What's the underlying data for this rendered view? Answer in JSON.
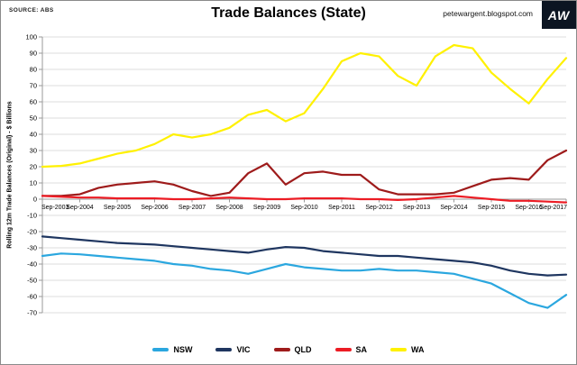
{
  "header": {
    "source_label": "SOURCE: ABS",
    "title": "Trade Balances (State)",
    "website": "petewargent.blogspot.com",
    "logo_text": "AW"
  },
  "chart_data": {
    "type": "line",
    "title": "Trade Balances (State)",
    "ylabel": "Rolling 12m Trade Balances (Original) - $ Billions",
    "ylim": [
      -70,
      100
    ],
    "y_ticks": [
      100,
      90,
      80,
      70,
      60,
      50,
      40,
      30,
      20,
      10,
      0,
      -10,
      -20,
      -30,
      -40,
      -50,
      -60,
      -70
    ],
    "x_labels": [
      "Sep-2003",
      "Sep-2004",
      "Sep-2005",
      "Sep-2006",
      "Sep-2007",
      "Sep-2008",
      "Sep-2009",
      "Sep-2010",
      "Sep-2011",
      "Sep-2012",
      "Sep-2013",
      "Sep-2014",
      "Sep-2015",
      "Sep-2016",
      "Sep-2017"
    ],
    "sampling": "half-yearly points (Mar & Sep) from Sep-2003 to Sep-2017",
    "grid": true,
    "legend_position": "bottom",
    "series": [
      {
        "name": "NSW",
        "color": "#2BA7DF",
        "values": [
          -35,
          -33.5,
          -34,
          -35,
          -36,
          -37,
          -38,
          -40,
          -41,
          -43,
          -44,
          -46,
          -43,
          -40,
          -42,
          -43,
          -44,
          -44,
          -43,
          -44,
          -44,
          -45,
          -46,
          -49,
          -52,
          -58,
          -64,
          -67,
          -59
        ]
      },
      {
        "name": "VIC",
        "color": "#1F3660",
        "values": [
          -23,
          -24,
          -25,
          -26,
          -27,
          -27.5,
          -28,
          -29,
          -30,
          -31,
          -32,
          -33,
          -31,
          -29.5,
          -30,
          -32,
          -33,
          -34,
          -35,
          -35,
          -36,
          -37,
          -38,
          -39,
          -41,
          -44,
          -46,
          -47,
          -46.5
        ]
      },
      {
        "name": "QLD",
        "color": "#9E1B1B",
        "values": [
          2,
          2,
          3,
          7,
          9,
          10,
          11,
          9,
          5,
          2,
          4,
          16,
          22,
          9,
          16,
          17,
          15,
          15,
          6,
          3,
          3,
          3,
          4,
          8,
          12,
          13,
          12,
          24,
          30
        ]
      },
      {
        "name": "SA",
        "color": "#EC1C24",
        "values": [
          2,
          1.5,
          1,
          1,
          0.5,
          0.5,
          0.5,
          0,
          0,
          0.5,
          1,
          0.5,
          0,
          0,
          0.5,
          0.5,
          0.5,
          0,
          0,
          -0.5,
          0,
          1,
          2,
          1,
          0,
          -1,
          -1,
          -1.5,
          -2
        ]
      },
      {
        "name": "WA",
        "color": "#FFF100",
        "values": [
          20,
          20.5,
          22,
          25,
          28,
          30,
          34,
          40,
          38,
          40,
          44,
          52,
          55,
          48,
          53,
          68,
          85,
          90,
          88,
          76,
          70,
          88,
          95,
          93,
          78,
          68,
          59,
          74,
          87
        ]
      }
    ]
  }
}
